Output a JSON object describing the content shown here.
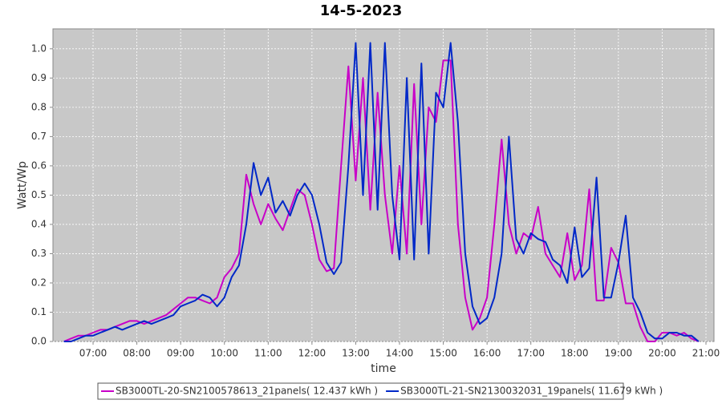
{
  "chart_data": {
    "type": "line",
    "title": "14-5-2023",
    "x_label": "time",
    "y_label": "Watt/Wp",
    "x": [
      "06:20",
      "06:30",
      "06:40",
      "06:50",
      "07:00",
      "07:10",
      "07:20",
      "07:30",
      "07:40",
      "07:50",
      "08:00",
      "08:10",
      "08:20",
      "08:30",
      "08:40",
      "08:50",
      "09:00",
      "09:10",
      "09:20",
      "09:30",
      "09:40",
      "09:50",
      "10:00",
      "10:10",
      "10:20",
      "10:30",
      "10:40",
      "10:50",
      "11:00",
      "11:10",
      "11:20",
      "11:30",
      "11:40",
      "11:50",
      "12:00",
      "12:10",
      "12:20",
      "12:30",
      "12:40",
      "12:50",
      "13:00",
      "13:10",
      "13:20",
      "13:30",
      "13:40",
      "13:50",
      "14:00",
      "14:10",
      "14:20",
      "14:30",
      "14:40",
      "14:50",
      "15:00",
      "15:10",
      "15:20",
      "15:30",
      "15:40",
      "15:50",
      "16:00",
      "16:10",
      "16:20",
      "16:30",
      "16:40",
      "16:50",
      "17:00",
      "17:10",
      "17:20",
      "17:30",
      "17:40",
      "17:50",
      "18:00",
      "18:10",
      "18:20",
      "18:30",
      "18:40",
      "18:50",
      "19:00",
      "19:10",
      "19:20",
      "19:30",
      "19:40",
      "19:50",
      "20:00",
      "20:10",
      "20:20",
      "20:30",
      "20:40",
      "20:50"
    ],
    "series": [
      {
        "name": "SB3000TL-20-SN2100578613_21panels( 12.437 kWh )",
        "color": "#c800c8",
        "values": [
          0.0,
          0.01,
          0.02,
          0.02,
          0.03,
          0.04,
          0.04,
          0.05,
          0.06,
          0.07,
          0.07,
          0.06,
          0.07,
          0.08,
          0.09,
          0.11,
          0.13,
          0.15,
          0.15,
          0.14,
          0.13,
          0.15,
          0.22,
          0.25,
          0.3,
          0.57,
          0.47,
          0.4,
          0.47,
          0.42,
          0.38,
          0.45,
          0.52,
          0.5,
          0.4,
          0.28,
          0.24,
          0.25,
          0.6,
          0.94,
          0.55,
          0.9,
          0.45,
          0.85,
          0.5,
          0.3,
          0.6,
          0.3,
          0.88,
          0.4,
          0.8,
          0.75,
          0.96,
          0.96,
          0.4,
          0.15,
          0.04,
          0.08,
          0.15,
          0.4,
          0.69,
          0.4,
          0.3,
          0.37,
          0.35,
          0.46,
          0.3,
          0.26,
          0.22,
          0.37,
          0.21,
          0.26,
          0.52,
          0.14,
          0.14,
          0.32,
          0.27,
          0.13,
          0.13,
          0.05,
          0.0,
          0.0,
          0.03,
          0.03,
          0.02,
          0.03,
          0.01,
          0.0
        ]
      },
      {
        "name": "SB3000TL-21-SN2130032031_19panels( 11.679 kWh )",
        "color": "#0028c8",
        "values": [
          0.0,
          0.0,
          0.01,
          0.02,
          0.02,
          0.03,
          0.04,
          0.05,
          0.04,
          0.05,
          0.06,
          0.07,
          0.06,
          0.07,
          0.08,
          0.09,
          0.12,
          0.13,
          0.14,
          0.16,
          0.15,
          0.12,
          0.15,
          0.22,
          0.26,
          0.4,
          0.61,
          0.5,
          0.56,
          0.44,
          0.48,
          0.43,
          0.5,
          0.54,
          0.5,
          0.4,
          0.27,
          0.23,
          0.27,
          0.6,
          1.02,
          0.5,
          1.02,
          0.45,
          1.02,
          0.5,
          0.28,
          0.9,
          0.28,
          0.95,
          0.3,
          0.85,
          0.8,
          1.02,
          0.75,
          0.3,
          0.12,
          0.06,
          0.08,
          0.15,
          0.3,
          0.7,
          0.35,
          0.3,
          0.37,
          0.35,
          0.34,
          0.28,
          0.26,
          0.2,
          0.39,
          0.22,
          0.25,
          0.56,
          0.15,
          0.15,
          0.27,
          0.43,
          0.15,
          0.1,
          0.03,
          0.01,
          0.01,
          0.03,
          0.03,
          0.02,
          0.02,
          0.0
        ]
      }
    ],
    "xlim": [
      "06:05",
      "21:11"
    ],
    "xticks": [
      "07:00",
      "08:00",
      "09:00",
      "10:00",
      "11:00",
      "12:00",
      "13:00",
      "14:00",
      "15:00",
      "16:00",
      "17:00",
      "18:00",
      "19:00",
      "20:00",
      "21:00"
    ],
    "ylim": [
      0,
      1.068
    ],
    "yticks": [
      {
        "value": 0,
        "label": "0.0"
      },
      0.1,
      0.2,
      0.3,
      0.4,
      0.5,
      0.6,
      0.7,
      0.8,
      0.9,
      {
        "value": 1,
        "label": "1.0"
      }
    ],
    "grid": true
  }
}
